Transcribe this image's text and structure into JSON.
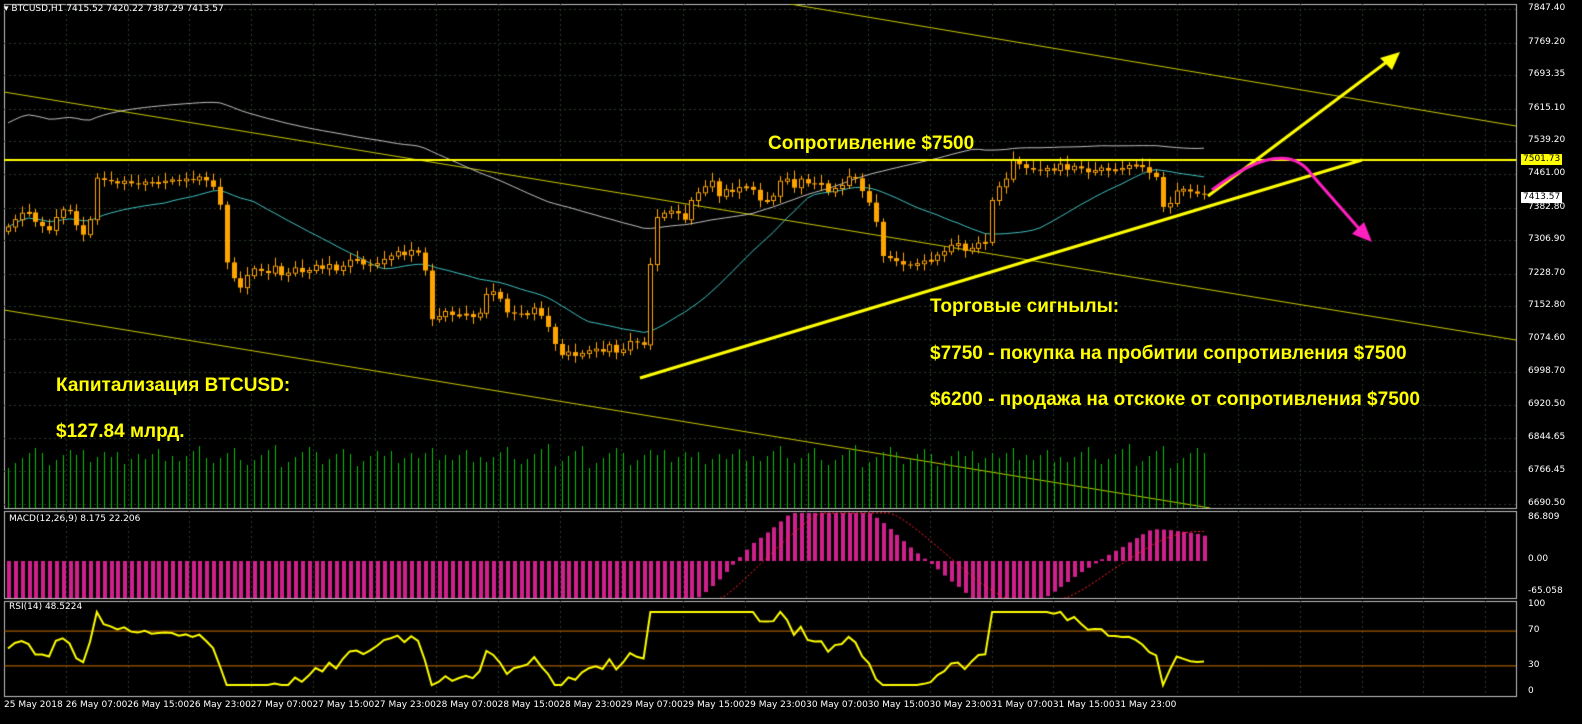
{
  "window": {
    "symbol_header": "BTCUSD,H1  7415.52 7420.22 7387.29 7413.57",
    "colors": {
      "background": "#000000",
      "grid": "#2a3a2a",
      "frame": "#c0c0c0",
      "bull": "#ffa500",
      "bear": "#ffa500",
      "ma_fast": "#40c0c0",
      "ma_slow": "#c0c0c0",
      "level": "#ffff00",
      "macd": "#d0208c",
      "rsi": "#ffff00",
      "volume": "#00c000",
      "arrow_down": "#ff20c0"
    }
  },
  "price_axis": {
    "labels": [
      "7847.40",
      "7769.20",
      "7693.35",
      "7615.10",
      "7539.20",
      "7461.00",
      "7382.80",
      "7306.90",
      "7228.70",
      "7152.80",
      "7074.60",
      "6998.70",
      "6920.50",
      "6844.65",
      "6766.45",
      "6690.50"
    ],
    "current_price": "7413.57",
    "resistance_price": "7501.73"
  },
  "time_axis": {
    "labels": [
      "25 May 2018",
      "26 May 07:00",
      "26 May 15:00",
      "26 May 23:00",
      "27 May 07:00",
      "27 May 15:00",
      "27 May 23:00",
      "28 May 07:00",
      "28 May 15:00",
      "28 May 23:00",
      "29 May 07:00",
      "29 May 15:00",
      "29 May 23:00",
      "30 May 07:00",
      "30 May 15:00",
      "30 May 23:00",
      "31 May 07:00",
      "31 May 15:00",
      "31 May 23:00"
    ]
  },
  "macd": {
    "label": "MACD(12,26,9) 8.175 22.206",
    "axis": [
      "86.809",
      "0.00",
      "-65.058"
    ]
  },
  "rsi": {
    "label": "RSI(14) 48.5224",
    "axis": [
      "100",
      "70",
      "30",
      "0"
    ]
  },
  "annotations": {
    "resistance": "Сопротивление $7500",
    "cap_title": "Капитализация BTCUSD:",
    "cap_value": "$127.84 млрд.",
    "signals_title": "Торговые сигнылы:",
    "signal_buy": "$7750 - покупка на пробитии сопротивления $7500",
    "signal_sell": "$6200 - продажа на отскоке от сопротивления $7500"
  },
  "chart_data": {
    "type": "candlestick",
    "timeframe": "H1",
    "close_series": [
      7338,
      7355,
      7370,
      7372,
      7350,
      7340,
      7330,
      7360,
      7378,
      7375,
      7342,
      7320,
      7355,
      7452,
      7448,
      7445,
      7440,
      7445,
      7440,
      7438,
      7443,
      7440,
      7442,
      7445,
      7448,
      7446,
      7450,
      7448,
      7455,
      7447,
      7432,
      7390,
      7255,
      7218,
      7196,
      7224,
      7240,
      7235,
      7230,
      7246,
      7225,
      7230,
      7242,
      7232,
      7236,
      7248,
      7240,
      7250,
      7236,
      7246,
      7260,
      7262,
      7250,
      7248,
      7252,
      7262,
      7270,
      7280,
      7272,
      7283,
      7278,
      7236,
      7122,
      7128,
      7140,
      7132,
      7132,
      7134,
      7127,
      7136,
      7180,
      7186,
      7170,
      7138,
      7135,
      7134,
      7135,
      7148,
      7130,
      7104,
      7064,
      7038,
      7045,
      7036,
      7042,
      7048,
      7052,
      7046,
      7062,
      7044,
      7050,
      7070,
      7068,
      7062,
      7250,
      7360,
      7370,
      7375,
      7370,
      7355,
      7400,
      7418,
      7432,
      7445,
      7410,
      7425,
      7420,
      7430,
      7432,
      7425,
      7400,
      7400,
      7410,
      7445,
      7450,
      7430,
      7450,
      7440,
      7438,
      7440,
      7420,
      7428,
      7435,
      7455,
      7452,
      7422,
      7395,
      7350,
      7270,
      7265,
      7258,
      7250,
      7248,
      7252,
      7258,
      7260,
      7272,
      7280,
      7295,
      7299,
      7282,
      7288,
      7300,
      7302,
      7400,
      7432,
      7450,
      7495,
      7485,
      7476,
      7472,
      7470,
      7475,
      7470,
      7485,
      7472,
      7480,
      7475,
      7466,
      7470,
      7476,
      7470,
      7472,
      7475,
      7482,
      7483,
      7478,
      7465,
      7455,
      7385,
      7393,
      7422,
      7426,
      7421,
      7416,
      7414
    ],
    "ma_fast_label": "teal moving average",
    "ma_slow_label": "grey moving average"
  }
}
